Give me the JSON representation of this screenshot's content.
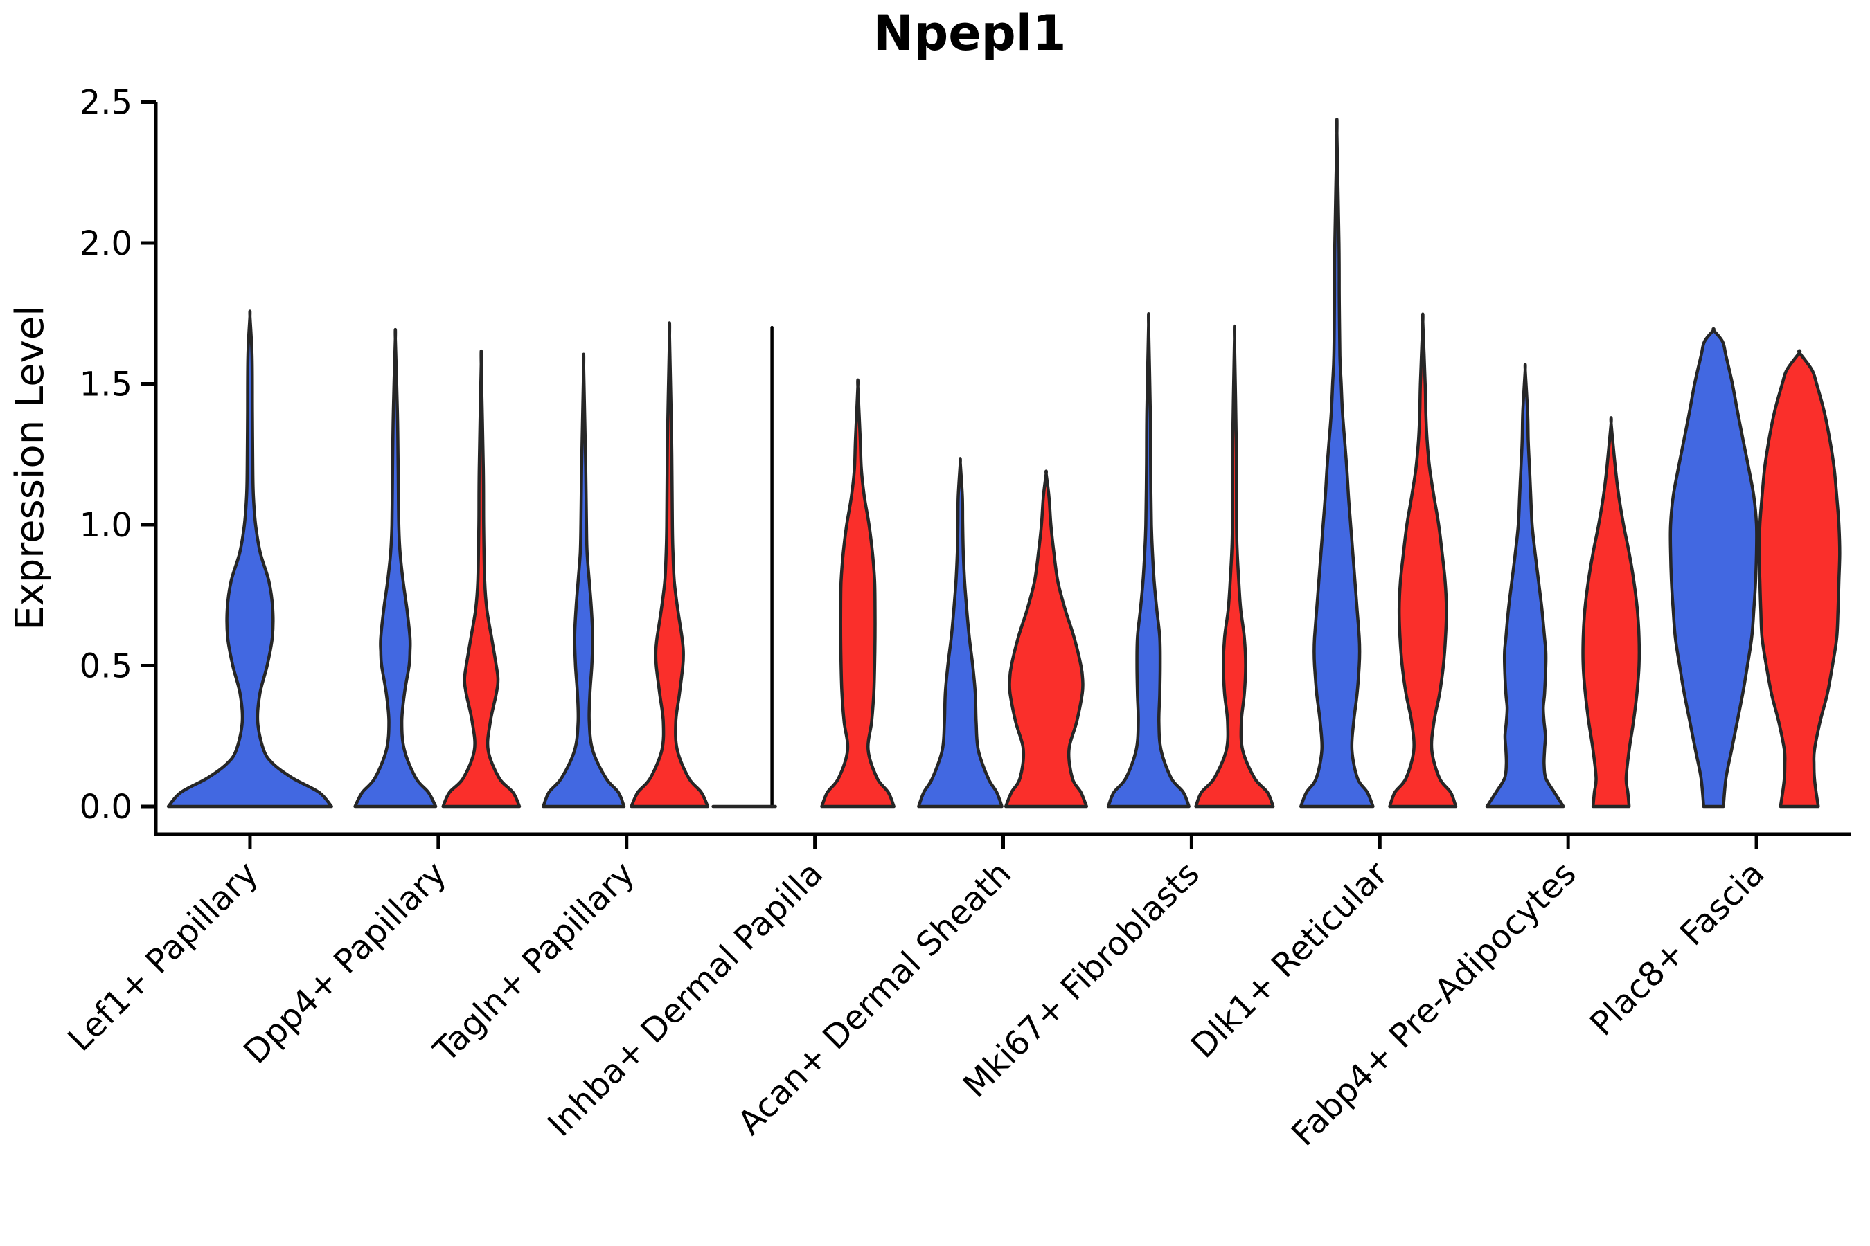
{
  "chart_data": {
    "type": "violin",
    "title": "Npepl1",
    "ylabel": "Expression Level",
    "xlabel": "",
    "ylim": [
      0,
      2.5
    ],
    "ytick_labels": [
      "0.0",
      "0.5",
      "1.0",
      "1.5",
      "2.0",
      "2.5"
    ],
    "ytick_values": [
      0,
      0.5,
      1.0,
      1.5,
      2.0,
      2.5
    ],
    "grid": false,
    "legend": "none",
    "plot_bg": "#FFFFFF",
    "colors": {
      "blue": "#4268E1",
      "red": "#FA2F2B",
      "outline": "#262626",
      "axis": "#000000"
    },
    "categories": [
      "Lef1+ Papillary",
      "Dpp4+ Papillary",
      "Tagln+ Papillary",
      "Inhba+ Dermal Papilla",
      "Acan+ Dermal Sheath",
      "Mki67+ Fibroblasts",
      "Dlk1+ Reticular",
      "Fabp4+ Pre-Adipocytes",
      "Plac8+ Fascia"
    ],
    "violins": [
      {
        "cat": 0,
        "color": "blue",
        "pos": "C",
        "max": 1.74,
        "profile": [
          [
            0,
            1.9
          ],
          [
            0.05,
            1.61
          ],
          [
            0.1,
            1.0
          ],
          [
            0.15,
            0.55
          ],
          [
            0.2,
            0.32
          ],
          [
            0.3,
            0.18
          ],
          [
            0.4,
            0.23
          ],
          [
            0.5,
            0.4
          ],
          [
            0.6,
            0.52
          ],
          [
            0.7,
            0.53
          ],
          [
            0.8,
            0.44
          ],
          [
            0.9,
            0.24
          ],
          [
            1.0,
            0.13
          ],
          [
            1.1,
            0.08
          ],
          [
            1.2,
            0.065
          ],
          [
            1.4,
            0.056
          ],
          [
            1.6,
            0.048
          ],
          [
            1.74,
            0
          ]
        ]
      },
      {
        "cat": 1,
        "color": "blue",
        "pos": "L",
        "max": 1.66,
        "profile": [
          [
            0,
            0.94
          ],
          [
            0.05,
            0.77
          ],
          [
            0.1,
            0.48
          ],
          [
            0.2,
            0.21
          ],
          [
            0.3,
            0.15
          ],
          [
            0.4,
            0.21
          ],
          [
            0.5,
            0.32
          ],
          [
            0.55,
            0.34
          ],
          [
            0.6,
            0.34
          ],
          [
            0.7,
            0.27
          ],
          [
            0.8,
            0.18
          ],
          [
            0.9,
            0.11
          ],
          [
            1.0,
            0.08
          ],
          [
            1.2,
            0.065
          ],
          [
            1.4,
            0.048
          ],
          [
            1.66,
            0
          ]
        ]
      },
      {
        "cat": 1,
        "color": "red",
        "pos": "R",
        "max": 1.57,
        "profile": [
          [
            0,
            0.89
          ],
          [
            0.05,
            0.74
          ],
          [
            0.1,
            0.42
          ],
          [
            0.2,
            0.16
          ],
          [
            0.3,
            0.21
          ],
          [
            0.4,
            0.35
          ],
          [
            0.45,
            0.39
          ],
          [
            0.5,
            0.35
          ],
          [
            0.6,
            0.24
          ],
          [
            0.7,
            0.13
          ],
          [
            0.8,
            0.08
          ],
          [
            1.0,
            0.056
          ],
          [
            1.2,
            0.048
          ],
          [
            1.57,
            0
          ]
        ]
      },
      {
        "cat": 2,
        "color": "blue",
        "pos": "L",
        "max": 1.56,
        "profile": [
          [
            0,
            0.94
          ],
          [
            0.05,
            0.81
          ],
          [
            0.1,
            0.52
          ],
          [
            0.2,
            0.21
          ],
          [
            0.3,
            0.13
          ],
          [
            0.4,
            0.145
          ],
          [
            0.5,
            0.19
          ],
          [
            0.6,
            0.21
          ],
          [
            0.7,
            0.18
          ],
          [
            0.8,
            0.13
          ],
          [
            0.9,
            0.08
          ],
          [
            1.0,
            0.065
          ],
          [
            1.2,
            0.048
          ],
          [
            1.56,
            0
          ]
        ]
      },
      {
        "cat": 2,
        "color": "red",
        "pos": "R",
        "max": 1.67,
        "profile": [
          [
            0,
            0.89
          ],
          [
            0.05,
            0.74
          ],
          [
            0.1,
            0.45
          ],
          [
            0.2,
            0.18
          ],
          [
            0.3,
            0.145
          ],
          [
            0.4,
            0.23
          ],
          [
            0.5,
            0.31
          ],
          [
            0.55,
            0.32
          ],
          [
            0.6,
            0.29
          ],
          [
            0.7,
            0.19
          ],
          [
            0.8,
            0.11
          ],
          [
            0.9,
            0.08
          ],
          [
            1.0,
            0.065
          ],
          [
            1.3,
            0.048
          ],
          [
            1.67,
            0
          ]
        ]
      },
      {
        "cat": 3,
        "color": "blue",
        "pos": "L",
        "max": 1.7,
        "collapsed": true,
        "base_extent": [
          -85,
          5
        ],
        "profile": []
      },
      {
        "cat": 3,
        "color": "red",
        "pos": "R",
        "max": 1.49,
        "profile": [
          [
            0,
            0.84
          ],
          [
            0.05,
            0.71
          ],
          [
            0.1,
            0.45
          ],
          [
            0.2,
            0.24
          ],
          [
            0.3,
            0.32
          ],
          [
            0.4,
            0.37
          ],
          [
            0.5,
            0.39
          ],
          [
            0.6,
            0.4
          ],
          [
            0.7,
            0.4
          ],
          [
            0.8,
            0.39
          ],
          [
            0.9,
            0.34
          ],
          [
            1.0,
            0.26
          ],
          [
            1.1,
            0.15
          ],
          [
            1.2,
            0.08
          ],
          [
            1.3,
            0.056
          ],
          [
            1.49,
            0
          ]
        ]
      },
      {
        "cat": 4,
        "color": "blue",
        "pos": "L",
        "max": 1.22,
        "profile": [
          [
            0,
            0.97
          ],
          [
            0.05,
            0.85
          ],
          [
            0.1,
            0.65
          ],
          [
            0.2,
            0.42
          ],
          [
            0.3,
            0.37
          ],
          [
            0.4,
            0.35
          ],
          [
            0.5,
            0.29
          ],
          [
            0.6,
            0.21
          ],
          [
            0.7,
            0.15
          ],
          [
            0.8,
            0.1
          ],
          [
            0.9,
            0.07
          ],
          [
            1.0,
            0.056
          ],
          [
            1.1,
            0.048
          ],
          [
            1.22,
            0
          ]
        ]
      },
      {
        "cat": 4,
        "color": "red",
        "pos": "R",
        "max": 1.18,
        "profile": [
          [
            0,
            0.94
          ],
          [
            0.05,
            0.81
          ],
          [
            0.1,
            0.61
          ],
          [
            0.2,
            0.53
          ],
          [
            0.3,
            0.71
          ],
          [
            0.4,
            0.84
          ],
          [
            0.45,
            0.85
          ],
          [
            0.5,
            0.81
          ],
          [
            0.6,
            0.65
          ],
          [
            0.7,
            0.44
          ],
          [
            0.8,
            0.27
          ],
          [
            0.9,
            0.18
          ],
          [
            1.0,
            0.11
          ],
          [
            1.1,
            0.065
          ],
          [
            1.18,
            0
          ]
        ]
      },
      {
        "cat": 5,
        "color": "blue",
        "pos": "L",
        "max": 1.71,
        "profile": [
          [
            0,
            0.94
          ],
          [
            0.05,
            0.81
          ],
          [
            0.1,
            0.53
          ],
          [
            0.2,
            0.29
          ],
          [
            0.3,
            0.24
          ],
          [
            0.4,
            0.26
          ],
          [
            0.5,
            0.27
          ],
          [
            0.6,
            0.26
          ],
          [
            0.7,
            0.19
          ],
          [
            0.8,
            0.13
          ],
          [
            0.9,
            0.09
          ],
          [
            1.0,
            0.065
          ],
          [
            1.2,
            0.048
          ],
          [
            1.4,
            0.04
          ],
          [
            1.71,
            0
          ]
        ]
      },
      {
        "cat": 5,
        "color": "red",
        "pos": "R",
        "max": 1.66,
        "profile": [
          [
            0,
            0.9
          ],
          [
            0.05,
            0.77
          ],
          [
            0.1,
            0.47
          ],
          [
            0.2,
            0.19
          ],
          [
            0.3,
            0.16
          ],
          [
            0.4,
            0.23
          ],
          [
            0.5,
            0.26
          ],
          [
            0.6,
            0.23
          ],
          [
            0.7,
            0.145
          ],
          [
            0.8,
            0.1
          ],
          [
            0.9,
            0.065
          ],
          [
            1.0,
            0.048
          ],
          [
            1.3,
            0.04
          ],
          [
            1.66,
            0
          ]
        ]
      },
      {
        "cat": 6,
        "color": "blue",
        "pos": "L",
        "max": 2.39,
        "profile": [
          [
            0,
            0.84
          ],
          [
            0.05,
            0.71
          ],
          [
            0.1,
            0.48
          ],
          [
            0.2,
            0.35
          ],
          [
            0.3,
            0.39
          ],
          [
            0.4,
            0.47
          ],
          [
            0.5,
            0.52
          ],
          [
            0.55,
            0.53
          ],
          [
            0.6,
            0.52
          ],
          [
            0.7,
            0.47
          ],
          [
            0.8,
            0.42
          ],
          [
            0.9,
            0.37
          ],
          [
            1.0,
            0.32
          ],
          [
            1.1,
            0.27
          ],
          [
            1.2,
            0.23
          ],
          [
            1.3,
            0.18
          ],
          [
            1.4,
            0.13
          ],
          [
            1.5,
            0.1
          ],
          [
            1.6,
            0.07
          ],
          [
            1.8,
            0.056
          ],
          [
            2.0,
            0.048
          ],
          [
            2.39,
            0
          ]
        ]
      },
      {
        "cat": 6,
        "color": "red",
        "pos": "R",
        "max": 1.72,
        "profile": [
          [
            0,
            0.77
          ],
          [
            0.05,
            0.65
          ],
          [
            0.1,
            0.39
          ],
          [
            0.2,
            0.21
          ],
          [
            0.3,
            0.26
          ],
          [
            0.4,
            0.39
          ],
          [
            0.5,
            0.48
          ],
          [
            0.6,
            0.53
          ],
          [
            0.7,
            0.55
          ],
          [
            0.8,
            0.52
          ],
          [
            0.9,
            0.45
          ],
          [
            1.0,
            0.37
          ],
          [
            1.1,
            0.26
          ],
          [
            1.2,
            0.16
          ],
          [
            1.3,
            0.1
          ],
          [
            1.4,
            0.07
          ],
          [
            1.5,
            0.056
          ],
          [
            1.72,
            0
          ]
        ]
      },
      {
        "cat": 7,
        "color": "blue",
        "pos": "L",
        "max": 1.55,
        "profile": [
          [
            0,
            0.89
          ],
          [
            0.05,
            0.68
          ],
          [
            0.1,
            0.48
          ],
          [
            0.15,
            0.44
          ],
          [
            0.2,
            0.45
          ],
          [
            0.25,
            0.47
          ],
          [
            0.3,
            0.44
          ],
          [
            0.35,
            0.42
          ],
          [
            0.4,
            0.45
          ],
          [
            0.5,
            0.48
          ],
          [
            0.55,
            0.48
          ],
          [
            0.6,
            0.45
          ],
          [
            0.7,
            0.39
          ],
          [
            0.8,
            0.31
          ],
          [
            0.9,
            0.23
          ],
          [
            1.0,
            0.16
          ],
          [
            1.1,
            0.13
          ],
          [
            1.2,
            0.1
          ],
          [
            1.3,
            0.07
          ],
          [
            1.4,
            0.056
          ],
          [
            1.55,
            0
          ]
        ]
      },
      {
        "cat": 7,
        "color": "red",
        "pos": "R",
        "max": 1.36,
        "profile": [
          [
            0,
            0.42
          ],
          [
            0.05,
            0.39
          ],
          [
            0.1,
            0.35
          ],
          [
            0.2,
            0.42
          ],
          [
            0.3,
            0.52
          ],
          [
            0.4,
            0.6
          ],
          [
            0.5,
            0.65
          ],
          [
            0.6,
            0.65
          ],
          [
            0.7,
            0.61
          ],
          [
            0.8,
            0.53
          ],
          [
            0.9,
            0.42
          ],
          [
            1.0,
            0.29
          ],
          [
            1.1,
            0.18
          ],
          [
            1.2,
            0.1
          ],
          [
            1.36,
            0
          ]
        ]
      },
      {
        "cat": 8,
        "color": "blue",
        "pos": "L",
        "max": 1.69,
        "profile": [
          [
            0,
            0.23
          ],
          [
            0.1,
            0.29
          ],
          [
            0.2,
            0.42
          ],
          [
            0.3,
            0.55
          ],
          [
            0.4,
            0.68
          ],
          [
            0.5,
            0.79
          ],
          [
            0.6,
            0.89
          ],
          [
            0.7,
            0.94
          ],
          [
            0.8,
            0.98
          ],
          [
            0.9,
            1.0
          ],
          [
            1.0,
            1.0
          ],
          [
            1.1,
            0.94
          ],
          [
            1.2,
            0.82
          ],
          [
            1.3,
            0.69
          ],
          [
            1.4,
            0.56
          ],
          [
            1.5,
            0.44
          ],
          [
            1.6,
            0.29
          ],
          [
            1.65,
            0.21
          ],
          [
            1.69,
            0
          ]
        ]
      },
      {
        "cat": 8,
        "color": "red",
        "pos": "R",
        "max": 1.61,
        "profile": [
          [
            0,
            0.44
          ],
          [
            0.05,
            0.39
          ],
          [
            0.1,
            0.35
          ],
          [
            0.15,
            0.34
          ],
          [
            0.2,
            0.35
          ],
          [
            0.3,
            0.48
          ],
          [
            0.4,
            0.65
          ],
          [
            0.5,
            0.77
          ],
          [
            0.6,
            0.87
          ],
          [
            0.7,
            0.9
          ],
          [
            0.8,
            0.92
          ],
          [
            0.9,
            0.94
          ],
          [
            1.0,
            0.92
          ],
          [
            1.1,
            0.87
          ],
          [
            1.2,
            0.81
          ],
          [
            1.3,
            0.71
          ],
          [
            1.4,
            0.58
          ],
          [
            1.5,
            0.4
          ],
          [
            1.55,
            0.29
          ],
          [
            1.61,
            0
          ]
        ]
      }
    ]
  }
}
